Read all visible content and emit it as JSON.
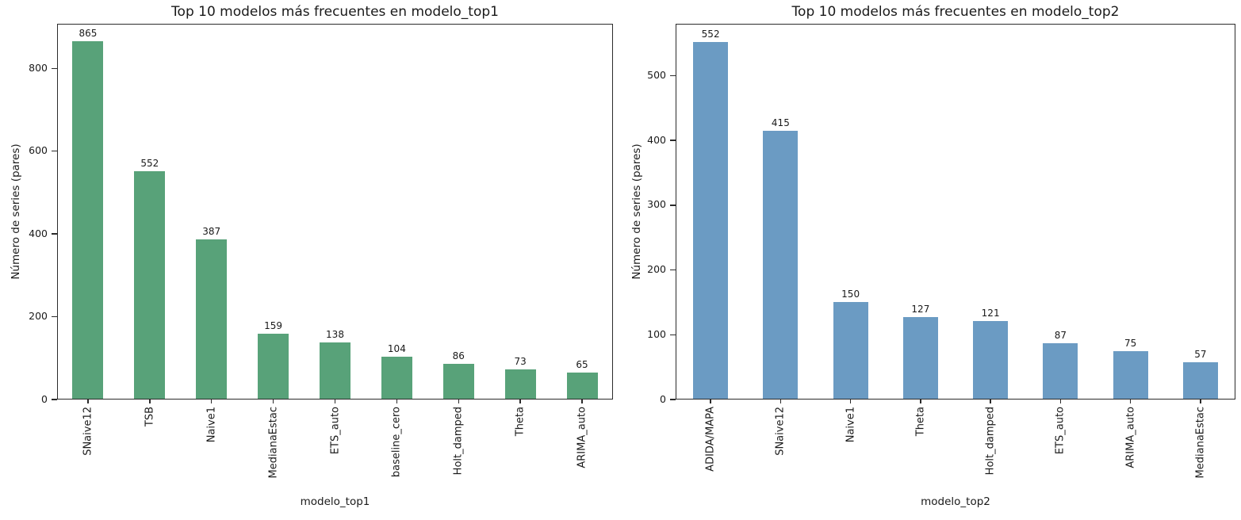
{
  "chart_data": [
    {
      "type": "bar",
      "title": "Top 10 modelos más frecuentes en modelo_top1",
      "xlabel": "modelo_top1",
      "ylabel": "Número de series (pares)",
      "categories": [
        "SNaive12",
        "TSB",
        "Naive1",
        "MedianaEstac",
        "ETS_auto",
        "baseline_cero",
        "Holt_damped",
        "Theta",
        "ARIMA_auto"
      ],
      "values": [
        865,
        552,
        387,
        159,
        138,
        104,
        86,
        73,
        65
      ],
      "bar_color": "#58a279",
      "ylim": [
        0,
        908
      ],
      "yticks": [
        0,
        200,
        400,
        600,
        800
      ],
      "grid": false,
      "legend": false
    },
    {
      "type": "bar",
      "title": "Top 10 modelos más frecuentes en modelo_top2",
      "xlabel": "modelo_top2",
      "ylabel": "Número de series (pares)",
      "categories": [
        "ADIDA/MAPA",
        "SNaive12",
        "Naive1",
        "Theta",
        "Holt_damped",
        "ETS_auto",
        "ARIMA_auto",
        "MedianaEstac"
      ],
      "values": [
        552,
        415,
        150,
        127,
        121,
        87,
        75,
        57
      ],
      "bar_color": "#6b9bc3",
      "ylim": [
        0,
        580
      ],
      "yticks": [
        0,
        100,
        200,
        300,
        400,
        500
      ],
      "grid": false,
      "legend": false
    }
  ]
}
